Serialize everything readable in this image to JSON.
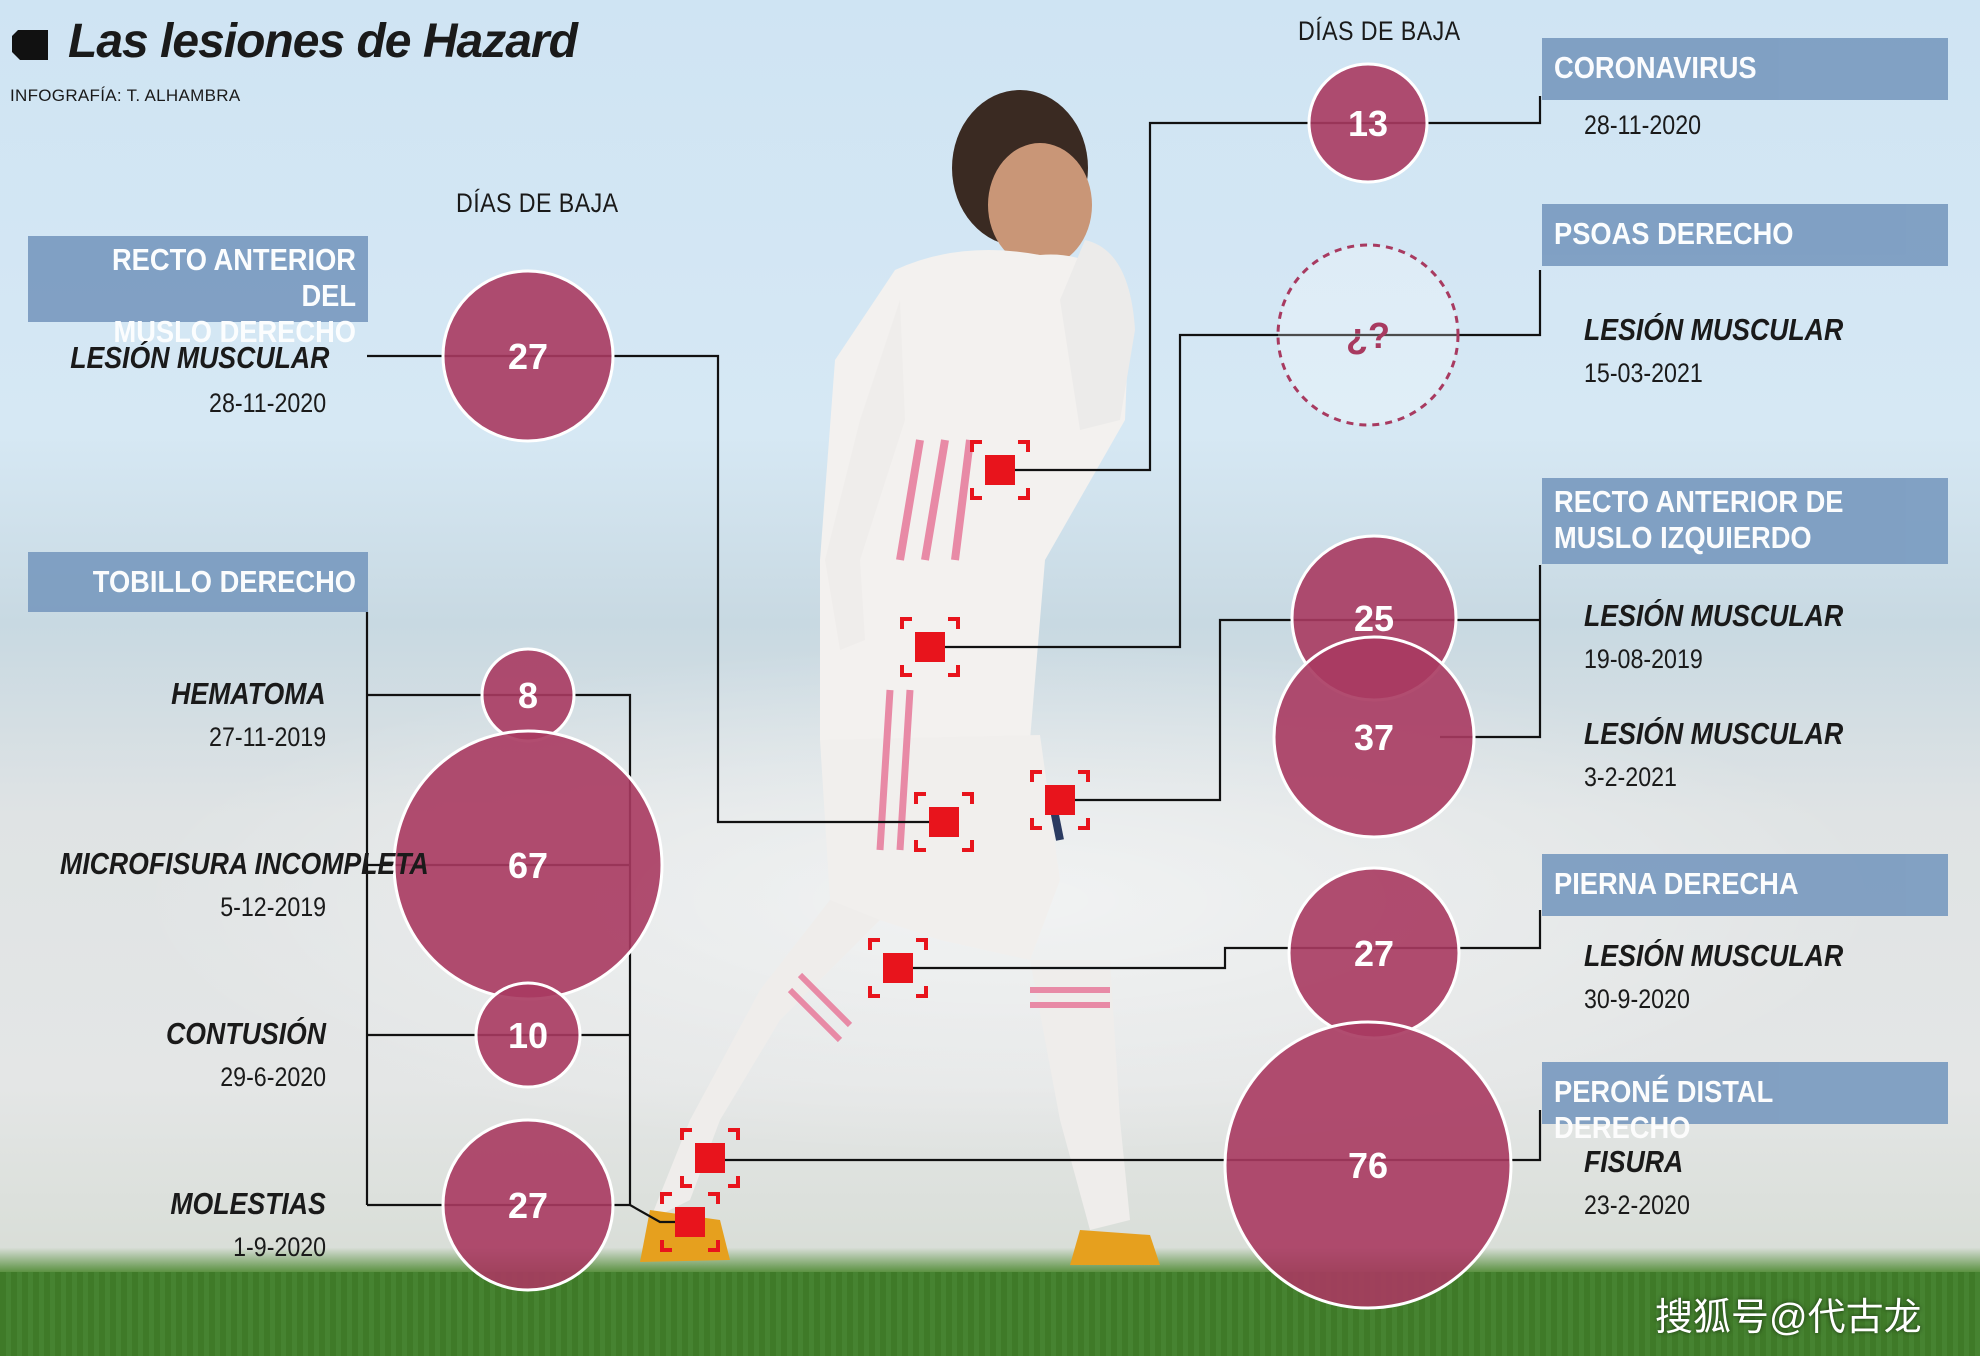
{
  "title": "Las lesiones de Hazard",
  "credit": "INFOGRAFÍA: T. ALHAMBRA",
  "dias_label": "DÍAS DE BAJA",
  "colors": {
    "bubble": "#a83a60",
    "box": "#7a9bc0",
    "marker": "#e8141c"
  },
  "left": {
    "recto": {
      "heading": "RECTO ANTERIOR DEL\nMUSLO DERECHO",
      "heading_line1": "RECTO ANTERIOR DEL",
      "heading_line2": "MUSLO DERECHO",
      "type": "LESIÓN MUSCULAR",
      "date": "28-11-2020",
      "days": "27"
    },
    "tobillo": {
      "heading": "TOBILLO DERECHO",
      "items": [
        {
          "type": "HEMATOMA",
          "date": "27-11-2019",
          "days": "8"
        },
        {
          "type": "MICROFISURA INCOMPLETA",
          "date": "5-12-2019",
          "days": "67"
        },
        {
          "type": "CONTUSIÓN",
          "date": "29-6-2020",
          "days": "10"
        },
        {
          "type": "MOLESTIAS",
          "date": "1-9-2020",
          "days": "27"
        }
      ]
    }
  },
  "right": {
    "coronavirus": {
      "heading": "CORONAVIRUS",
      "date": "28-11-2020",
      "days": "13"
    },
    "psoas": {
      "heading": "PSOAS DERECHO",
      "type": "LESIÓN MUSCULAR",
      "date": "15-03-2021",
      "days": "¿?"
    },
    "recto_izq": {
      "heading_line1": "RECTO ANTERIOR DE",
      "heading_line2": "MUSLO IZQUIERDO",
      "items": [
        {
          "type": "LESIÓN MUSCULAR",
          "date": "19-08-2019",
          "days": "25"
        },
        {
          "type": "LESIÓN MUSCULAR",
          "date": "3-2-2021",
          "days": "37"
        }
      ]
    },
    "pierna": {
      "heading": "PIERNA DERECHA",
      "type": "LESIÓN MUSCULAR",
      "date": "30-9-2020",
      "days": "27"
    },
    "perone": {
      "heading": "PERONÉ DISTAL DERECHO",
      "type": "FISURA",
      "date": "23-2-2020",
      "days": "76"
    }
  },
  "watermark": "搜狐号@代古龙"
}
